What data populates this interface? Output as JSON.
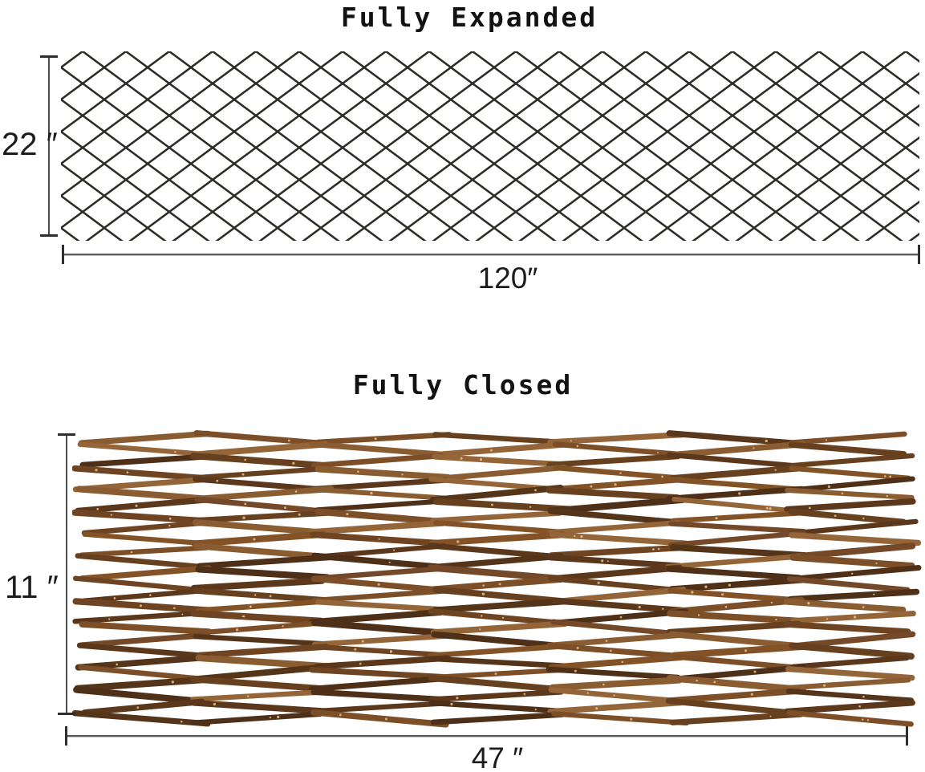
{
  "page": {
    "background": "#ffffff",
    "dimension_line_color": "#4d4d4d"
  },
  "expanded": {
    "title": "Fully Expanded",
    "height_label": "22 ″",
    "width_label": "120″",
    "height_value_inches": 22,
    "width_value_inches": 120,
    "lattice_color": "#2f2b27"
  },
  "closed": {
    "title": "Fully Closed",
    "height_label": "11 ″",
    "width_label": "47 ″",
    "height_value_inches": 11,
    "width_value_inches": 47,
    "stick_palette": [
      "#6f4423",
      "#7d4f28",
      "#5b371c",
      "#8a5c32",
      "#4e2f18",
      "#946538",
      "#66401f",
      "#55351a",
      "#835327",
      "#74492a"
    ],
    "speckle_color": "#e8c389"
  }
}
